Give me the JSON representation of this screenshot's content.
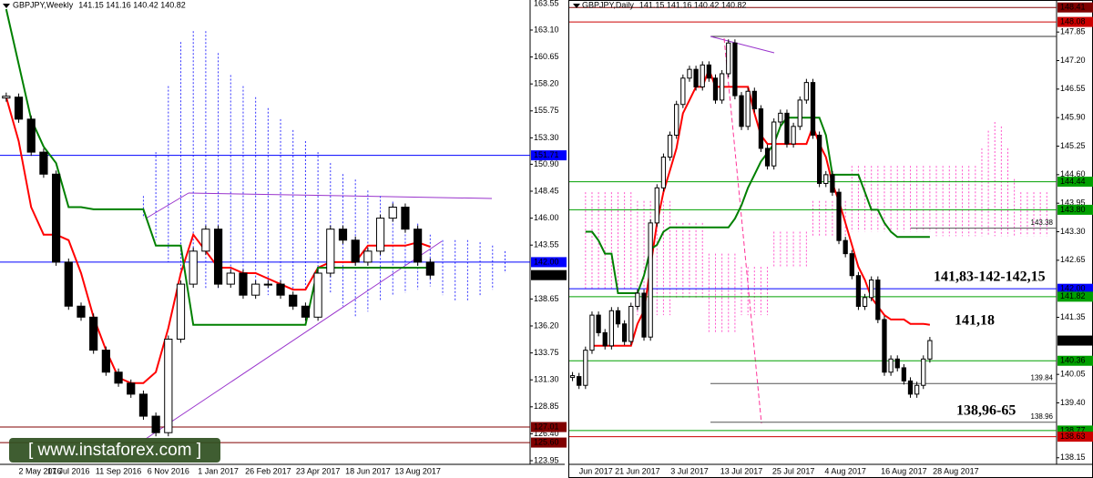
{
  "watermark": "[ www.instaforex.com ]",
  "chart_data": [
    {
      "type": "candlestick",
      "title": "GBPJPY,Weekly",
      "ohlc": "141.15 141.16 140.42 140.82",
      "top_price": 163.55,
      "categories": [
        null,
        "2 May 2016",
        null,
        null,
        null,
        "17 Jul 2016",
        null,
        null,
        null,
        "11 Sep 2016",
        null,
        null,
        null,
        "6 Nov 2016",
        null,
        null,
        null,
        "1 Jan 2017",
        null,
        null,
        null,
        "26 Feb 2017",
        null,
        null,
        null,
        "23 Apr 2017",
        null,
        null,
        null,
        "18 Jun 2017",
        null,
        null,
        null,
        "13 Aug 2017",
        null,
        null,
        null,
        null,
        null,
        null,
        null,
        null
      ],
      "values": [
        157,
        155,
        152,
        150,
        142,
        138,
        137,
        134,
        132,
        131,
        130,
        128,
        126.5,
        135,
        140,
        143,
        145,
        140,
        141,
        139,
        140,
        140,
        139,
        138,
        137,
        141,
        145,
        144,
        142,
        143,
        146,
        147,
        145,
        142,
        140.82,
        null,
        null,
        null,
        null,
        null,
        null,
        null
      ],
      "series": [
        {
          "color": "#ff0000",
          "values": [
            157,
            153,
            147,
            144.5,
            144.5,
            144,
            141,
            137,
            134,
            131.5,
            131,
            131,
            132,
            136,
            141,
            144.5,
            143,
            141.5,
            141.5,
            141,
            141,
            140.5,
            140,
            139.5,
            139.5,
            141.5,
            142,
            142,
            142,
            143.5,
            143.5,
            143.5,
            143.5,
            143.8,
            143.4,
            null,
            null,
            null,
            null,
            null,
            null,
            null
          ]
        },
        {
          "color": "#008000",
          "values": [
            165,
            160,
            155,
            152.5,
            151,
            147,
            147,
            146.8,
            146.8,
            146.8,
            146.8,
            146.8,
            143.5,
            143.5,
            143.5,
            136.3,
            136.3,
            136.3,
            136.3,
            136.3,
            136.3,
            136.3,
            136.3,
            136.3,
            136.3,
            141.5,
            141.5,
            141.5,
            141.5,
            141.5,
            141.5,
            141.5,
            141.5,
            141.5,
            141.5,
            null,
            null,
            null,
            null,
            null,
            null,
            null
          ]
        }
      ],
      "cloud": {
        "color": "#3333ff",
        "upper": [
          null,
          null,
          null,
          null,
          null,
          null,
          null,
          null,
          null,
          null,
          null,
          148,
          152,
          158,
          162,
          163,
          163,
          161,
          159,
          158,
          157,
          156,
          155,
          154,
          153,
          152,
          151,
          150,
          149.5,
          148.5,
          148,
          147.5,
          146.5,
          145.5,
          144.5,
          144,
          144,
          144,
          143.8,
          143.5,
          143,
          null
        ],
        "lower": [
          null,
          null,
          null,
          null,
          null,
          null,
          null,
          null,
          null,
          null,
          null,
          146,
          144,
          142,
          141,
          140,
          139.5,
          139.5,
          140,
          139.5,
          139,
          139,
          139.3,
          139.5,
          139.5,
          139.3,
          139.2,
          138,
          137,
          137.5,
          138.5,
          139,
          139.2,
          139.5,
          139.8,
          139,
          138.5,
          138.5,
          139,
          139.5,
          141,
          null
        ]
      },
      "ylim": [
        123.62,
        165.83
      ],
      "yticks": [
        {
          "value": 163.1,
          "label": "163.10"
        },
        160.65,
        {
          "value": 158.2,
          "label": "158.20"
        },
        155.75,
        {
          "value": 153.3,
          "label": "153.30"
        },
        {
          "value": 150.9,
          "label": "150.90"
        },
        148.45,
        {
          "value": 146,
          "label": "146.00"
        },
        143.55,
        138.65,
        {
          "value": 136.2,
          "label": "136.20"
        },
        133.75,
        {
          "value": 131.3,
          "label": "131.30"
        },
        128.85,
        {
          "value": 126.4,
          "label": "126.40"
        },
        123.95
      ],
      "levels": [
        {
          "value": 151.71,
          "color": "#0000ff"
        },
        {
          "value": 142,
          "label": "142.00",
          "color": "#0000ff"
        },
        {
          "value": 140.82,
          "color": "#000000"
        },
        {
          "value": 127.01,
          "color": "#800000"
        },
        {
          "value": 125.6,
          "label": "125.60",
          "color": "#800000"
        }
      ]
    },
    {
      "type": "candlestick",
      "title": "GBPJPY,Daily",
      "ohlc": "141.15 141.16 140.42 140.82",
      "categories": [
        null,
        "Jun 2017",
        null,
        null,
        null,
        null,
        null,
        null,
        null,
        null,
        "21 Jun 2017",
        null,
        null,
        null,
        null,
        null,
        null,
        null,
        "3 Jul 2017",
        null,
        null,
        null,
        null,
        null,
        null,
        null,
        "13 Jul 2017",
        null,
        null,
        null,
        null,
        null,
        null,
        null,
        "25 Jul 2017",
        null,
        null,
        null,
        null,
        null,
        null,
        null,
        "4 Aug 2017",
        null,
        null,
        null,
        null,
        null,
        null,
        null,
        null,
        "16 Aug 2017",
        null,
        null,
        null,
        null,
        null,
        null,
        null,
        "28 Aug 2017",
        null,
        null,
        null,
        null,
        null,
        null,
        null,
        null,
        null,
        null,
        null,
        null,
        null,
        null,
        null
      ],
      "values": [
        140.0,
        139.8,
        140.6,
        141.4,
        141.0,
        140.7,
        141.5,
        141.2,
        140.8,
        141.6,
        141.9,
        140.9,
        143.5,
        144.3,
        145.0,
        145.5,
        146.2,
        146.8,
        147.0,
        146.6,
        147.1,
        146.8,
        146.3,
        146.9,
        147.6,
        146.4,
        145.7,
        146.5,
        146.1,
        145.2,
        144.8,
        145.8,
        146.0,
        145.3,
        145.7,
        146.3,
        146.7,
        145.5,
        144.4,
        144.6,
        144.2,
        143.1,
        142.8,
        142.3,
        141.6,
        141.8,
        142.2,
        141.3,
        140.1,
        140.4,
        140.2,
        139.9,
        139.6,
        139.8,
        140.4,
        140.82,
        null,
        null,
        null,
        null,
        null,
        null,
        null,
        null,
        null,
        null,
        null,
        null,
        null,
        null,
        null,
        null,
        null,
        null,
        null
      ],
      "series": [
        {
          "color": "#ff0000",
          "values": [
            null,
            null,
            null,
            140.7,
            140.7,
            140.7,
            140.7,
            140.7,
            140.7,
            140.7,
            141.2,
            141.5,
            142.5,
            143.5,
            144.2,
            144.7,
            145.2,
            146.0,
            146.3,
            146.6,
            146.6,
            147.0,
            146.6,
            146.6,
            146.6,
            146.6,
            146.6,
            146.6,
            146.0,
            145.5,
            145.3,
            145.3,
            145.3,
            145.3,
            145.3,
            145.3,
            145.3,
            145.7,
            145.3,
            145.0,
            144.4,
            144.0,
            143.5,
            143.0,
            142.5,
            142.2,
            141.8,
            141.6,
            141.4,
            141.3,
            141.3,
            141.3,
            141.2,
            141.2,
            141.2,
            141.18,
            null,
            null,
            null,
            null,
            null,
            null,
            null,
            null,
            null,
            null,
            null,
            null,
            null,
            null,
            null,
            null,
            null,
            null,
            null
          ]
        },
        {
          "color": "#008000",
          "values": [
            null,
            null,
            143.3,
            143.3,
            143.1,
            142.8,
            142.8,
            141.9,
            141.9,
            141.9,
            141.9,
            142.3,
            142.9,
            143.0,
            143.3,
            143.4,
            143.4,
            143.4,
            143.4,
            143.4,
            143.4,
            143.4,
            143.4,
            143.4,
            143.4,
            143.6,
            143.9,
            144.3,
            144.6,
            144.9,
            145.1,
            145.3,
            145.7,
            145.9,
            145.9,
            145.9,
            145.9,
            145.9,
            145.9,
            145.5,
            144.6,
            144.6,
            144.6,
            144.6,
            144.6,
            144.2,
            143.8,
            143.8,
            143.5,
            143.3,
            143.18,
            143.18,
            143.18,
            143.18,
            143.18,
            143.18,
            null,
            null,
            null,
            null,
            null,
            null,
            null,
            null,
            null,
            null,
            null,
            null,
            null,
            null,
            null,
            null,
            null,
            null,
            null
          ]
        }
      ],
      "cloud": {
        "color": "#ff55cc",
        "upper": [
          null,
          null,
          144.2,
          144.2,
          144.2,
          144.2,
          144.2,
          144.2,
          144.2,
          144.2,
          144.0,
          144.0,
          144.0,
          144.0,
          144.0,
          144.0,
          143.5,
          143.5,
          143.5,
          143.5,
          143.5,
          142.8,
          142.8,
          142.8,
          142.8,
          142.8,
          142.5,
          142.5,
          142.5,
          142.5,
          142.5,
          143.3,
          143.3,
          143.3,
          143.3,
          143.3,
          143.3,
          144.0,
          144.0,
          144.0,
          144.0,
          144.0,
          144.0,
          144.8,
          144.8,
          144.8,
          144.8,
          144.8,
          144.8,
          144.8,
          144.8,
          144.8,
          144.8,
          144.8,
          144.8,
          144.8,
          144.8,
          144.8,
          144.8,
          144.8,
          144.8,
          144.8,
          144.8,
          145.2,
          145.6,
          145.8,
          145.7,
          145.2,
          144.5,
          144.2,
          144.2,
          144.2,
          144.2,
          144.2,
          null
        ],
        "lower": [
          null,
          null,
          142.0,
          142.0,
          142.0,
          142.0,
          142.0,
          142.0,
          142.0,
          142.0,
          141.4,
          141.4,
          141.4,
          141.4,
          141.4,
          141.4,
          141.8,
          141.8,
          141.8,
          141.8,
          141.8,
          141.0,
          141.0,
          141.0,
          141.0,
          141.0,
          141.4,
          141.4,
          141.4,
          141.4,
          141.4,
          142.5,
          142.5,
          142.5,
          142.5,
          142.5,
          142.5,
          143.2,
          143.2,
          143.2,
          143.2,
          143.2,
          143.2,
          143.3,
          143.3,
          143.3,
          143.3,
          143.3,
          143.3,
          143.3,
          143.3,
          143.3,
          143.3,
          143.3,
          143.3,
          143.3,
          143.2,
          143.2,
          143.2,
          143.2,
          143.2,
          143.2,
          143.2,
          143.2,
          143.2,
          143.2,
          143.2,
          143.2,
          143.2,
          143.2,
          143.2,
          143.2,
          143.2,
          143.2,
          null
        ]
      },
      "ylim": [
        138.0,
        148.58
      ],
      "yticks": [
        147.85,
        {
          "value": 147.2,
          "label": "147.20"
        },
        146.55,
        {
          "value": 145.9,
          "label": "145.90"
        },
        145.25,
        {
          "value": 144.6,
          "label": "144.60"
        },
        143.95,
        {
          "value": 143.3,
          "label": "143.30"
        },
        142.65,
        141.35,
        140.05,
        {
          "value": 139.4,
          "label": "139.40"
        },
        138.15
      ],
      "levels": [
        {
          "value": 148.41,
          "color": "#800000"
        },
        {
          "value": 148.08,
          "color": "#cc0000"
        },
        {
          "value": 144.44,
          "color": "#00a000"
        },
        {
          "value": 143.8,
          "label": "143.80",
          "color": "#00a000"
        },
        {
          "value": 142,
          "label": "142.00",
          "color": "#0000ff"
        },
        {
          "value": 141.82,
          "color": "#00a000"
        },
        {
          "value": 140.82,
          "color": "#000000"
        },
        {
          "value": 140.36,
          "color": "#00a000"
        },
        {
          "value": 138.77,
          "color": "#00a000"
        },
        {
          "value": 138.63,
          "color": "#cc0000"
        }
      ],
      "marked_lines": [
        143.38,
        139.84,
        138.96
      ],
      "annotations": [
        "141,83-142-142,15",
        "141,18",
        "138,96-65"
      ]
    }
  ]
}
